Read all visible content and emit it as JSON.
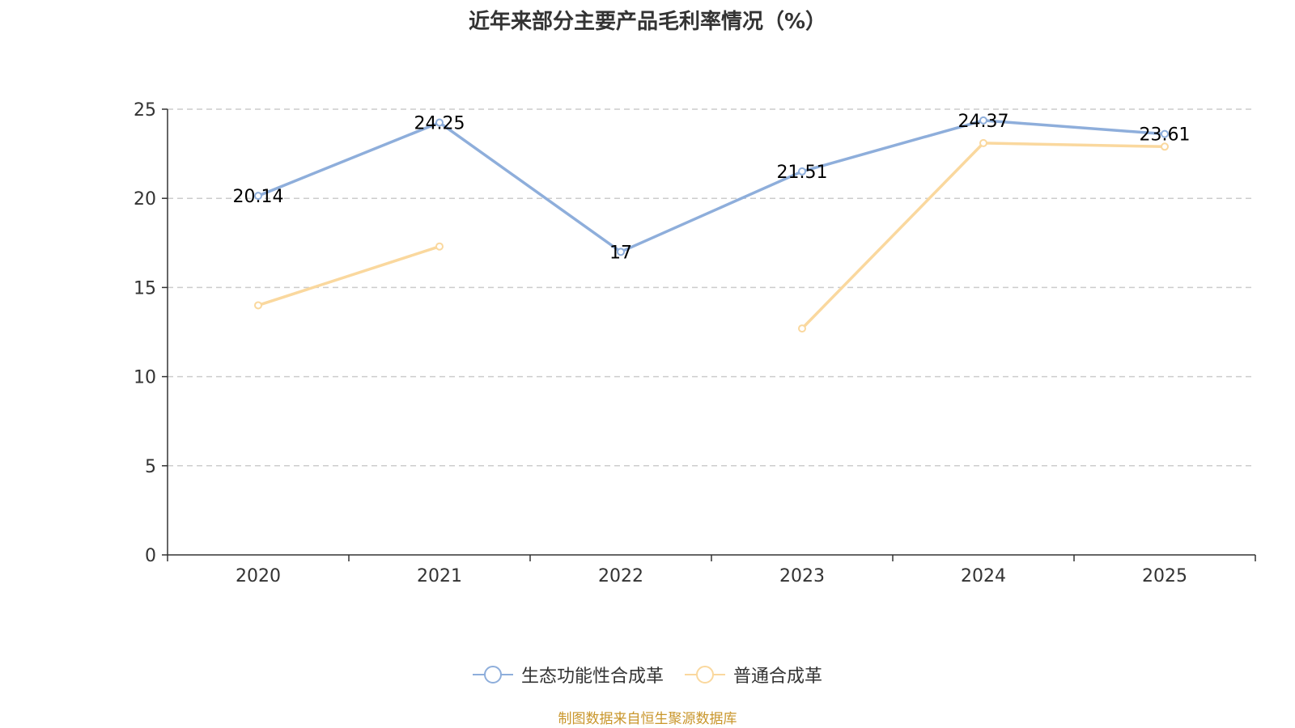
{
  "title": "近年来部分主要产品毛利率情况（%）",
  "source_note": "制图数据来自恒生聚源数据库",
  "colors": {
    "series1": "#8eaedb",
    "series2": "#fad89e",
    "axis": "#333333",
    "grid": "#cccccc"
  },
  "chart_data": {
    "type": "line",
    "title": "近年来部分主要产品毛利率情况（%）",
    "xlabel": "",
    "ylabel": "",
    "categories": [
      "2020",
      "2021",
      "2022",
      "2023",
      "2024",
      "2025"
    ],
    "ylim": [
      0,
      25
    ],
    "yticks": [
      0,
      5,
      10,
      15,
      20,
      25
    ],
    "grid": true,
    "legend_position": "bottom",
    "series": [
      {
        "name": "生态功能性合成革",
        "values": [
          20.14,
          24.25,
          17,
          21.51,
          24.37,
          23.61
        ],
        "labels": [
          "20.14",
          "24.25",
          "17",
          "21.51",
          "24.37",
          "23.61"
        ],
        "color": "#8eaedb"
      },
      {
        "name": "普通合成革",
        "values": [
          14.0,
          17.3,
          null,
          12.7,
          23.1,
          22.9
        ],
        "color": "#fad89e"
      }
    ]
  }
}
